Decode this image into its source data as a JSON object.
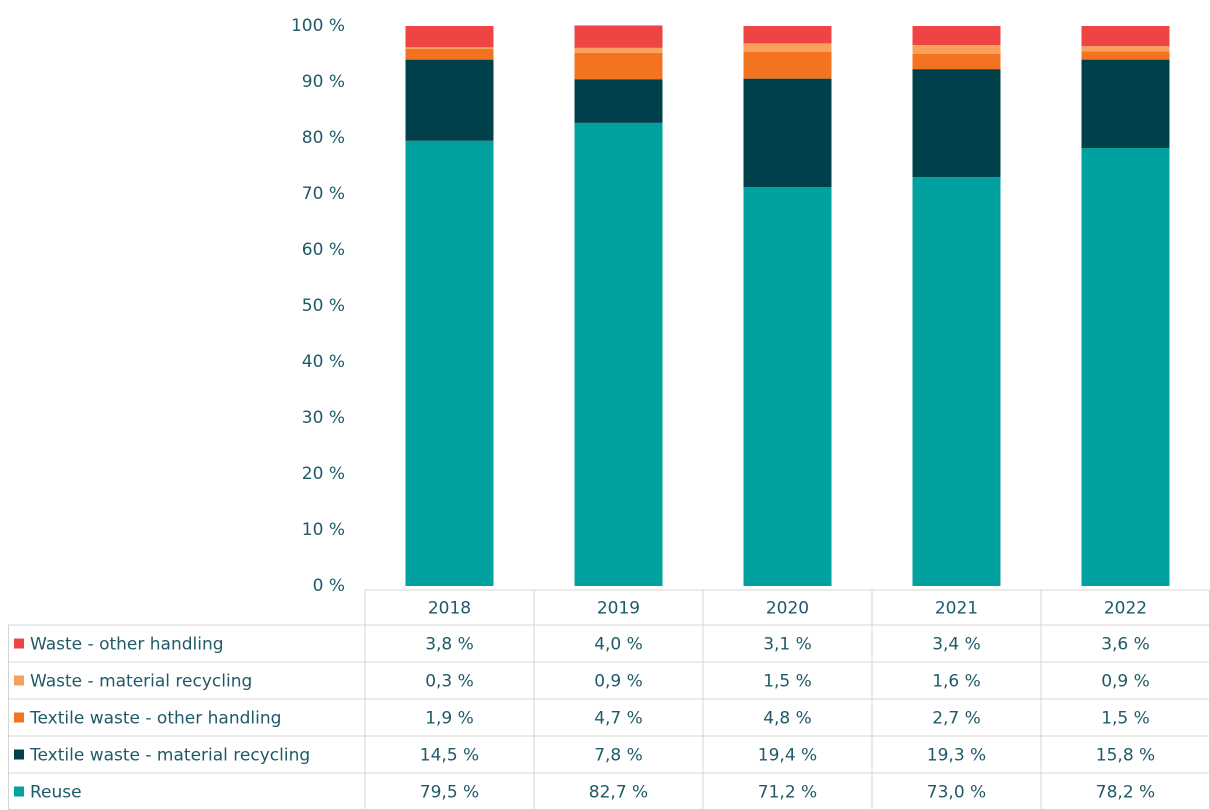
{
  "chart_data": {
    "type": "bar",
    "stacked": true,
    "categories": [
      "2018",
      "2019",
      "2020",
      "2021",
      "2022"
    ],
    "series": [
      {
        "name": "Reuse",
        "color": "#00a19f",
        "values": [
          79.5,
          82.7,
          71.2,
          73.0,
          78.2
        ],
        "value_labels": [
          "79,5 %",
          "82,7 %",
          "71,2 %",
          "73,0 %",
          "78,2 %"
        ]
      },
      {
        "name": "Textile waste - material recycling",
        "color": "#00404a",
        "values": [
          14.5,
          7.8,
          19.4,
          19.3,
          15.8
        ],
        "value_labels": [
          "14,5 %",
          "7,8 %",
          "19,4 %",
          "19,3 %",
          "15,8 %"
        ]
      },
      {
        "name": "Textile waste - other handling",
        "color": "#f47321",
        "values": [
          1.9,
          4.7,
          4.8,
          2.7,
          1.5
        ],
        "value_labels": [
          "1,9 %",
          "4,7 %",
          "4,8 %",
          "2,7 %",
          "1,5 %"
        ]
      },
      {
        "name": "Waste - material recycling",
        "color": "#f9a05a",
        "values": [
          0.3,
          0.9,
          1.5,
          1.6,
          0.9
        ],
        "value_labels": [
          "0,3 %",
          "0,9 %",
          "1,5 %",
          "1,6 %",
          "0,9 %"
        ]
      },
      {
        "name": "Waste - other handling",
        "color": "#ee4444",
        "values": [
          3.8,
          4.0,
          3.1,
          3.4,
          3.6
        ],
        "value_labels": [
          "3,8 %",
          "4,0 %",
          "3,1 %",
          "3,4 %",
          "3,6 %"
        ]
      }
    ],
    "ylim": [
      0,
      100
    ],
    "yticks": [
      {
        "value": 0,
        "label": "0 %"
      },
      {
        "value": 10,
        "label": "10 %"
      },
      {
        "value": 20,
        "label": "20 %"
      },
      {
        "value": 30,
        "label": "30 %"
      },
      {
        "value": 40,
        "label": "40 %"
      },
      {
        "value": 50,
        "label": "50 %"
      },
      {
        "value": 60,
        "label": "60 %"
      },
      {
        "value": 70,
        "label": "70 %"
      },
      {
        "value": 80,
        "label": "80 %"
      },
      {
        "value": 90,
        "label": "90 %"
      },
      {
        "value": 100,
        "label": "100 %"
      }
    ]
  }
}
